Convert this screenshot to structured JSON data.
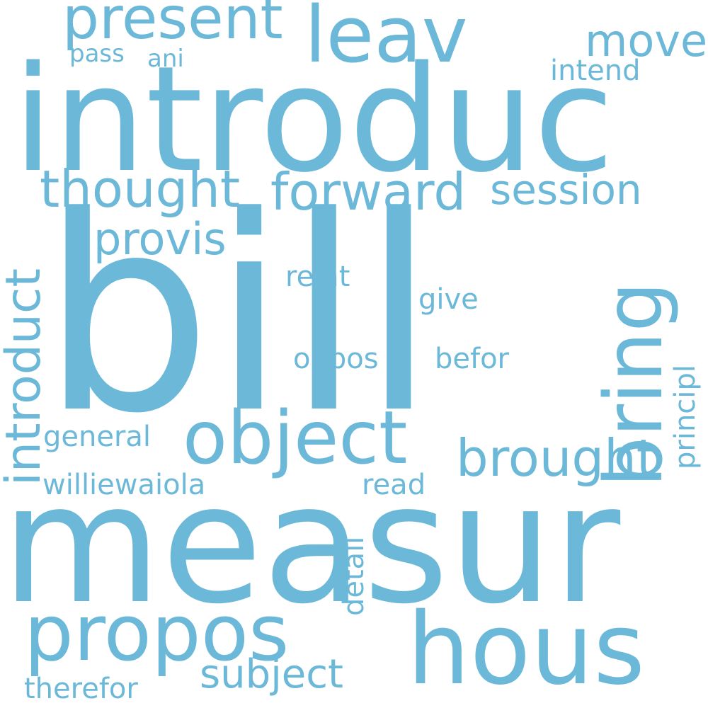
{
  "word_color": "#6cb8d8",
  "background_color": "#ffffff",
  "words": [
    {
      "id": "introduc",
      "text": "introduc"
    },
    {
      "id": "bill",
      "text": "bill"
    },
    {
      "id": "measur",
      "text": "measur"
    },
    {
      "id": "hous",
      "text": "hous"
    },
    {
      "id": "propos",
      "text": "propos"
    },
    {
      "id": "object",
      "text": "object"
    },
    {
      "id": "leav",
      "text": "leav"
    },
    {
      "id": "present",
      "text": "present"
    },
    {
      "id": "bring",
      "text": "bring"
    },
    {
      "id": "forward",
      "text": "forward"
    },
    {
      "id": "thought",
      "text": "thought"
    },
    {
      "id": "brought",
      "text": "brought"
    },
    {
      "id": "introduct",
      "text": "introduct"
    },
    {
      "id": "session",
      "text": "session"
    },
    {
      "id": "provis",
      "text": "provis"
    },
    {
      "id": "move",
      "text": "move"
    },
    {
      "id": "subject",
      "text": "subject"
    },
    {
      "id": "intend",
      "text": "intend"
    },
    {
      "id": "relat",
      "text": "relat"
    },
    {
      "id": "give",
      "text": "give"
    },
    {
      "id": "oppos",
      "text": "oppos"
    },
    {
      "id": "befor",
      "text": "befor"
    },
    {
      "id": "principl",
      "text": "principl"
    },
    {
      "id": "general",
      "text": "general"
    },
    {
      "id": "williewaiola",
      "text": "williewaiola"
    },
    {
      "id": "read",
      "text": "read"
    },
    {
      "id": "detail",
      "text": "detail"
    },
    {
      "id": "therefor",
      "text": "therefor"
    },
    {
      "id": "pass",
      "text": "pass"
    },
    {
      "id": "ani",
      "text": "ani"
    }
  ]
}
